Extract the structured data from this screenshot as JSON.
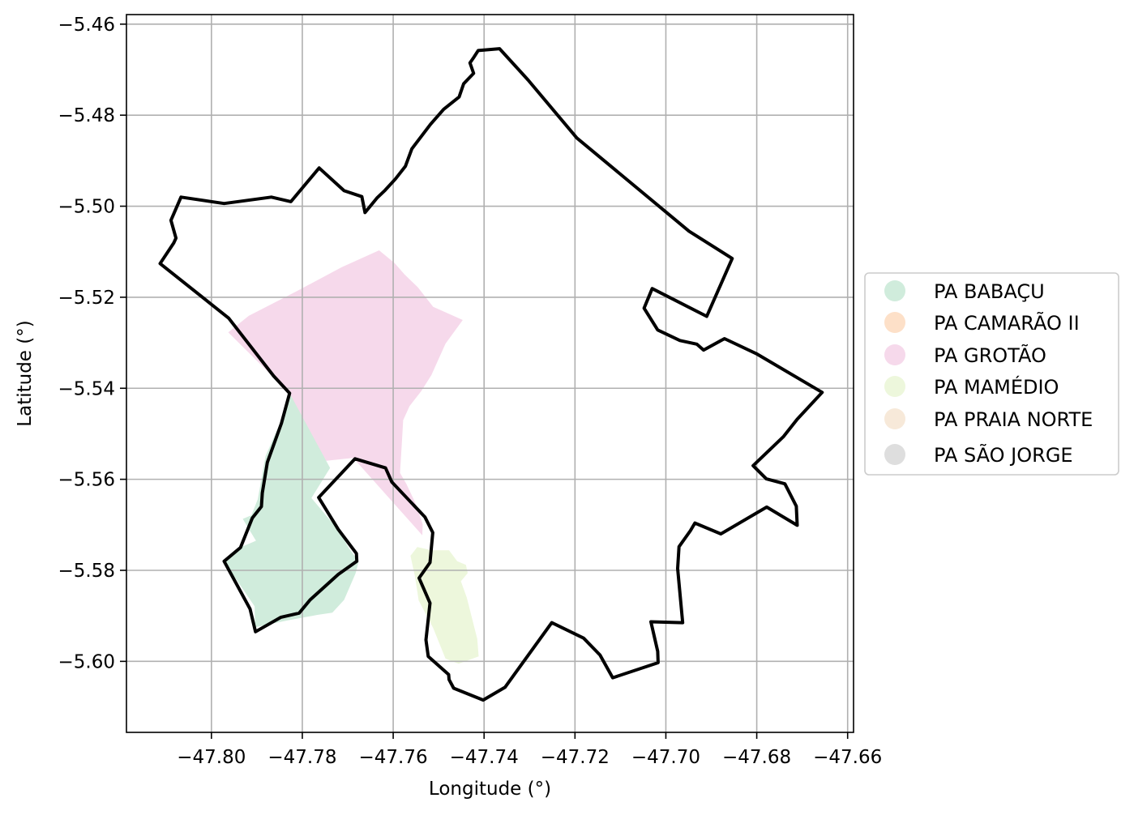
{
  "map": {
    "xlabel": "Longitude (°)",
    "ylabel": "Latitude (°)",
    "grid": true,
    "legend_placement": "center-right, outside plot",
    "x_ticks": [
      {
        "value": -47.8,
        "label": "−47.80"
      },
      {
        "value": -47.78,
        "label": "−47.78"
      },
      {
        "value": -47.76,
        "label": "−47.76"
      },
      {
        "value": -47.74,
        "label": "−47.74"
      },
      {
        "value": -47.72,
        "label": "−47.72"
      },
      {
        "value": -47.7,
        "label": "−47.70"
      },
      {
        "value": -47.68,
        "label": "−47.68"
      },
      {
        "value": -47.66,
        "label": "−47.66"
      }
    ],
    "y_ticks": [
      {
        "value": -5.46,
        "label": "−5.46"
      },
      {
        "value": -5.48,
        "label": "−5.48"
      },
      {
        "value": -5.5,
        "label": "−5.50"
      },
      {
        "value": -5.52,
        "label": "−5.52"
      },
      {
        "value": -5.54,
        "label": "−5.54"
      },
      {
        "value": -5.56,
        "label": "−5.56"
      },
      {
        "value": -5.58,
        "label": "−5.58"
      },
      {
        "value": -5.6,
        "label": "−5.60"
      }
    ],
    "xlim": [
      -47.8187,
      -47.6587
    ],
    "ylim": [
      -5.6156,
      -5.4579
    ],
    "legend": [
      {
        "label": "PA BABAÇU",
        "color": "#d0ecdc"
      },
      {
        "label": "PA CAMARÃO II",
        "color": "#fde0c8"
      },
      {
        "label": "PA GROTÃO",
        "color": "#f6d9eb"
      },
      {
        "label": "PA MAMÉDIO",
        "color": "#edf7dc"
      },
      {
        "label": "PA PRAIA NORTE",
        "color": "#f7e9d9"
      },
      {
        "label": "PA SÃO JORGE",
        "color": "#dedede"
      }
    ],
    "areas": [
      {
        "name": "PA GROTÃO",
        "color": "#f6d9eb",
        "coords": [
          [
            -47.7963,
            -5.5277
          ],
          [
            -47.7918,
            -5.5241
          ],
          [
            -47.7813,
            -5.5187
          ],
          [
            -47.7713,
            -5.5134
          ],
          [
            -47.7631,
            -5.5097
          ],
          [
            -47.7597,
            -5.5125
          ],
          [
            -47.7575,
            -5.515
          ],
          [
            -47.7546,
            -5.5178
          ],
          [
            -47.7512,
            -5.5221
          ],
          [
            -47.7447,
            -5.525
          ],
          [
            -47.7485,
            -5.5302
          ],
          [
            -47.7516,
            -5.5371
          ],
          [
            -47.7538,
            -5.5406
          ],
          [
            -47.7564,
            -5.5439
          ],
          [
            -47.7578,
            -5.547
          ],
          [
            -47.7581,
            -5.5522
          ],
          [
            -47.7585,
            -5.5586
          ],
          [
            -47.7571,
            -5.561
          ],
          [
            -47.7549,
            -5.5657
          ],
          [
            -47.7535,
            -5.5699
          ],
          [
            -47.7536,
            -5.5723
          ],
          [
            -47.7688,
            -5.5553
          ],
          [
            -47.7764,
            -5.5561
          ],
          [
            -47.7828,
            -5.5411
          ]
        ]
      },
      {
        "name": "PA BABAÇU",
        "color": "#d0ecdc",
        "coords": [
          [
            -47.7828,
            -5.5411
          ],
          [
            -47.7851,
            -5.5481
          ],
          [
            -47.7881,
            -5.5549
          ],
          [
            -47.7898,
            -5.5644
          ],
          [
            -47.7912,
            -5.5679
          ],
          [
            -47.7931,
            -5.5687
          ],
          [
            -47.7902,
            -5.5735
          ],
          [
            -47.794,
            -5.5751
          ],
          [
            -47.7972,
            -5.5781
          ],
          [
            -47.7905,
            -5.5879
          ],
          [
            -47.7904,
            -5.5925
          ],
          [
            -47.7832,
            -5.591
          ],
          [
            -47.7767,
            -5.5898
          ],
          [
            -47.7734,
            -5.5893
          ],
          [
            -47.7708,
            -5.5865
          ],
          [
            -47.7683,
            -5.5807
          ],
          [
            -47.7676,
            -5.5781
          ],
          [
            -47.7697,
            -5.5752
          ],
          [
            -47.7721,
            -5.5711
          ],
          [
            -47.778,
            -5.5641
          ],
          [
            -47.7739,
            -5.5575
          ]
        ]
      },
      {
        "name": "PA MAMÉDIO",
        "color": "#edf7dc",
        "coords": [
          [
            -47.7547,
            -5.5749
          ],
          [
            -47.7515,
            -5.5756
          ],
          [
            -47.7477,
            -5.5756
          ],
          [
            -47.7459,
            -5.578
          ],
          [
            -47.744,
            -5.5788
          ],
          [
            -47.7436,
            -5.5806
          ],
          [
            -47.7451,
            -5.5824
          ],
          [
            -47.7438,
            -5.586
          ],
          [
            -47.7415,
            -5.5951
          ],
          [
            -47.7412,
            -5.5989
          ],
          [
            -47.7456,
            -5.6005
          ],
          [
            -47.7485,
            -5.5994
          ],
          [
            -47.7512,
            -5.5927
          ],
          [
            -47.7544,
            -5.5866
          ],
          [
            -47.7552,
            -5.5814
          ],
          [
            -47.7562,
            -5.5768
          ]
        ]
      }
    ],
    "boundary": {
      "name": "municipality-boundary",
      "color": "#000000",
      "coords": [
        [
          -47.7413,
          -5.4658
        ],
        [
          -47.7366,
          -5.4654
        ],
        [
          -47.7303,
          -5.4723
        ],
        [
          -47.7196,
          -5.485
        ],
        [
          -47.6949,
          -5.5055
        ],
        [
          -47.6854,
          -5.5115
        ],
        [
          -47.691,
          -5.5242
        ],
        [
          -47.703,
          -5.5181
        ],
        [
          -47.7048,
          -5.5224
        ],
        [
          -47.7018,
          -5.5272
        ],
        [
          -47.6969,
          -5.5295
        ],
        [
          -47.6932,
          -5.5303
        ],
        [
          -47.6917,
          -5.5316
        ],
        [
          -47.6871,
          -5.5291
        ],
        [
          -47.6799,
          -5.5325
        ],
        [
          -47.6656,
          -5.5409
        ],
        [
          -47.6711,
          -5.5468
        ],
        [
          -47.6741,
          -5.5506
        ],
        [
          -47.6808,
          -5.557
        ],
        [
          -47.6779,
          -5.5599
        ],
        [
          -47.6738,
          -5.561
        ],
        [
          -47.6713,
          -5.5659
        ],
        [
          -47.6711,
          -5.5701
        ],
        [
          -47.6778,
          -5.5661
        ],
        [
          -47.6879,
          -5.572
        ],
        [
          -47.6936,
          -5.5696
        ],
        [
          -47.6946,
          -5.5713
        ],
        [
          -47.6971,
          -5.5748
        ],
        [
          -47.6974,
          -5.5796
        ],
        [
          -47.6963,
          -5.5915
        ],
        [
          -47.7033,
          -5.5913
        ],
        [
          -47.7018,
          -5.5978
        ],
        [
          -47.7017,
          -5.6003
        ],
        [
          -47.7117,
          -5.6036
        ],
        [
          -47.7145,
          -5.5986
        ],
        [
          -47.7181,
          -5.5949
        ],
        [
          -47.7251,
          -5.5915
        ],
        [
          -47.7354,
          -5.6057
        ],
        [
          -47.7402,
          -5.6085
        ],
        [
          -47.7467,
          -5.6059
        ],
        [
          -47.7477,
          -5.604
        ],
        [
          -47.7478,
          -5.6029
        ],
        [
          -47.7523,
          -5.5989
        ],
        [
          -47.7528,
          -5.5953
        ],
        [
          -47.7519,
          -5.5872
        ],
        [
          -47.7543,
          -5.5817
        ],
        [
          -47.7519,
          -5.5783
        ],
        [
          -47.7513,
          -5.5717
        ],
        [
          -47.753,
          -5.5683
        ],
        [
          -47.7603,
          -5.5606
        ],
        [
          -47.7617,
          -5.5575
        ],
        [
          -47.7684,
          -5.5555
        ],
        [
          -47.7764,
          -5.564
        ],
        [
          -47.7721,
          -5.571
        ],
        [
          -47.7681,
          -5.5763
        ],
        [
          -47.768,
          -5.578
        ],
        [
          -47.7721,
          -5.5809
        ],
        [
          -47.7783,
          -5.5865
        ],
        [
          -47.7807,
          -5.5894
        ],
        [
          -47.7847,
          -5.5903
        ],
        [
          -47.7903,
          -5.5935
        ],
        [
          -47.7915,
          -5.5885
        ],
        [
          -47.7972,
          -5.578
        ],
        [
          -47.7936,
          -5.575
        ],
        [
          -47.791,
          -5.5685
        ],
        [
          -47.789,
          -5.566
        ],
        [
          -47.7888,
          -5.563
        ],
        [
          -47.7877,
          -5.5563
        ],
        [
          -47.7846,
          -5.5477
        ],
        [
          -47.7828,
          -5.5411
        ],
        [
          -47.7863,
          -5.5373
        ],
        [
          -47.7962,
          -5.5246
        ],
        [
          -47.8113,
          -5.5126
        ],
        [
          -47.8083,
          -5.5081
        ],
        [
          -47.8078,
          -5.507
        ],
        [
          -47.8089,
          -5.5031
        ],
        [
          -47.8067,
          -5.498
        ],
        [
          -47.7972,
          -5.4994
        ],
        [
          -47.7868,
          -5.498
        ],
        [
          -47.7825,
          -5.499
        ],
        [
          -47.7763,
          -5.4916
        ],
        [
          -47.7708,
          -5.4966
        ],
        [
          -47.7669,
          -5.4979
        ],
        [
          -47.7662,
          -5.5014
        ],
        [
          -47.7635,
          -5.4981
        ],
        [
          -47.7618,
          -5.4965
        ],
        [
          -47.7595,
          -5.494
        ],
        [
          -47.7573,
          -5.4912
        ],
        [
          -47.7559,
          -5.4874
        ],
        [
          -47.7518,
          -5.482
        ],
        [
          -47.7489,
          -5.4787
        ],
        [
          -47.7455,
          -5.476
        ],
        [
          -47.7445,
          -5.4731
        ],
        [
          -47.7423,
          -5.4708
        ],
        [
          -47.7431,
          -5.4685
        ],
        [
          -47.7422,
          -5.4672
        ]
      ]
    }
  }
}
